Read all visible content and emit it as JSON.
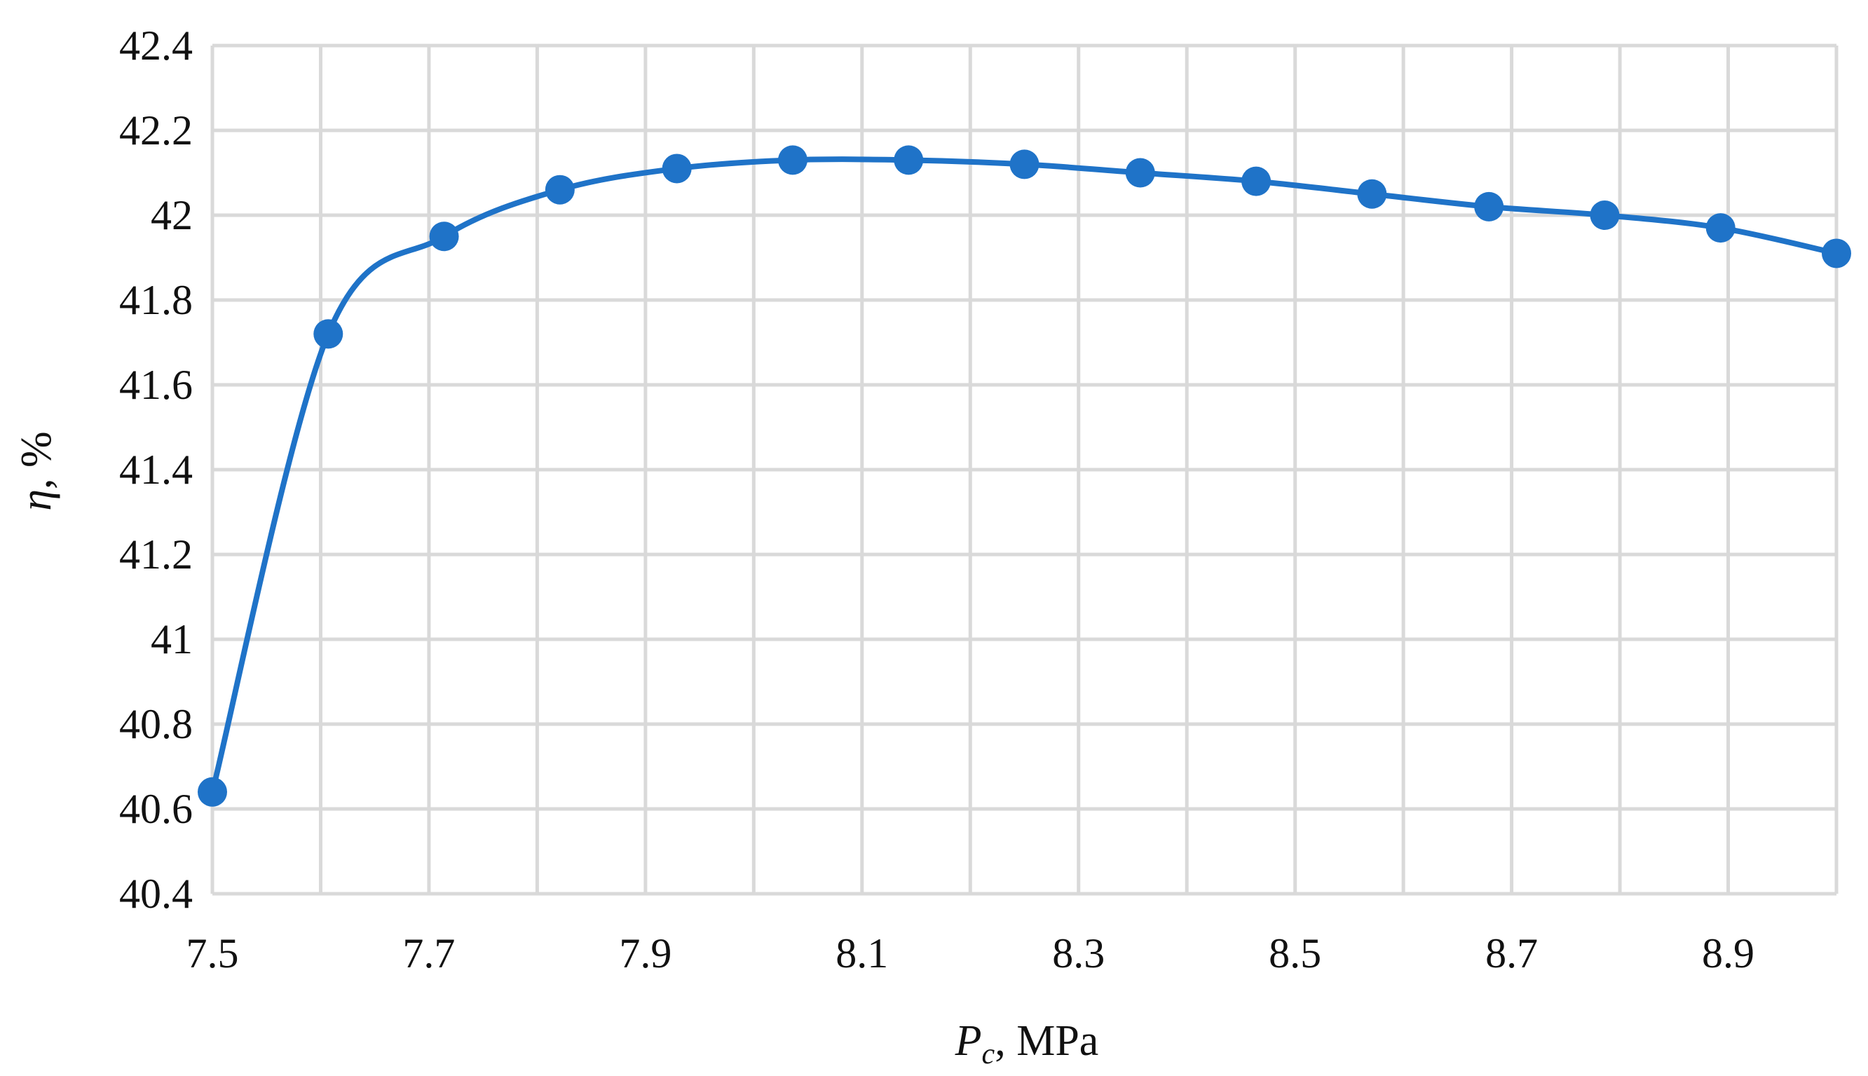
{
  "chart_data": {
    "type": "line",
    "x_axis": {
      "label_symbol": "P",
      "label_subscript": "c",
      "label_suffix": ", MPa",
      "range": [
        7.5,
        9.0
      ],
      "ticks": [
        7.5,
        7.6,
        7.7,
        7.8,
        7.9,
        8.0,
        8.1,
        8.2,
        8.3,
        8.4,
        8.5,
        8.6,
        8.7,
        8.8,
        8.9,
        9.0
      ],
      "tick_labels": [
        "7.5",
        "7.7",
        "7.9",
        "8.1",
        "8.3",
        "8.5",
        "8.7",
        "8.9"
      ]
    },
    "y_axis": {
      "label_symbol": "η",
      "label_suffix": ", %",
      "range": [
        40.4,
        42.4
      ],
      "ticks": [
        40.4,
        40.6,
        40.8,
        41.0,
        41.2,
        41.4,
        41.6,
        41.8,
        42.0,
        42.2,
        42.4
      ],
      "tick_labels": [
        "40.4",
        "40.6",
        "40.8",
        "41",
        "41.2",
        "41.4",
        "41.6",
        "41.8",
        "42",
        "42.2",
        "42.4"
      ]
    },
    "grid": true,
    "series": [
      {
        "color": "#1f73c8",
        "marker": "circle",
        "smooth": true,
        "x": [
          7.5,
          7.607,
          7.714,
          7.821,
          7.929,
          8.036,
          8.143,
          8.25,
          8.357,
          8.464,
          8.571,
          8.679,
          8.786,
          8.893,
          9.0
        ],
        "y": [
          40.64,
          41.72,
          41.95,
          42.06,
          42.11,
          42.13,
          42.13,
          42.12,
          42.1,
          42.08,
          42.05,
          42.02,
          42.0,
          41.97,
          41.91
        ]
      }
    ]
  }
}
